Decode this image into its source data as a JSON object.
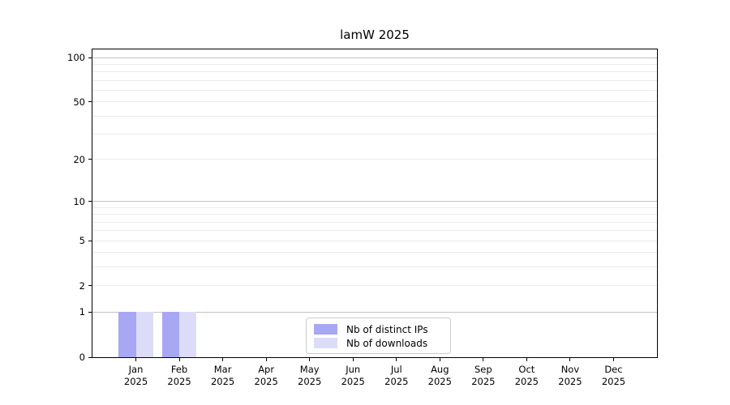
{
  "chart_data": {
    "type": "bar",
    "title": "lamW 2025",
    "x_year": "2025",
    "categories": [
      "Jan",
      "Feb",
      "Mar",
      "Apr",
      "May",
      "Jun",
      "Jul",
      "Aug",
      "Sep",
      "Oct",
      "Nov",
      "Dec"
    ],
    "series": [
      {
        "name": "Nb of distinct IPs",
        "color": "#a7a7f3",
        "values": [
          1,
          1,
          0,
          0,
          0,
          0,
          0,
          0,
          0,
          0,
          0,
          0
        ]
      },
      {
        "name": "Nb of downloads",
        "color": "#dcdcf9",
        "values": [
          1,
          1,
          0,
          0,
          0,
          0,
          0,
          0,
          0,
          0,
          0,
          0
        ]
      }
    ],
    "y_scale": "log1p",
    "y_tick_values": [
      0,
      1,
      2,
      5,
      10,
      20,
      50,
      100
    ],
    "y_tick_labels": [
      "0",
      "1",
      "2",
      "5",
      "10",
      "20",
      "50",
      "100"
    ],
    "major_grid_values": [
      1,
      10,
      100
    ],
    "minor_grid_values": [
      2,
      3,
      4,
      5,
      6,
      7,
      8,
      9,
      20,
      30,
      40,
      50,
      60,
      70,
      80,
      90
    ],
    "ylim": [
      0,
      113
    ],
    "grid": "horizontal",
    "legend_position": "lower center inside"
  },
  "colors": {
    "background": "#ffffff",
    "spine": "#000000",
    "major_grid": "#c3c3c3",
    "minor_grid": "#ebebeb",
    "legend_border": "#cccccc"
  }
}
